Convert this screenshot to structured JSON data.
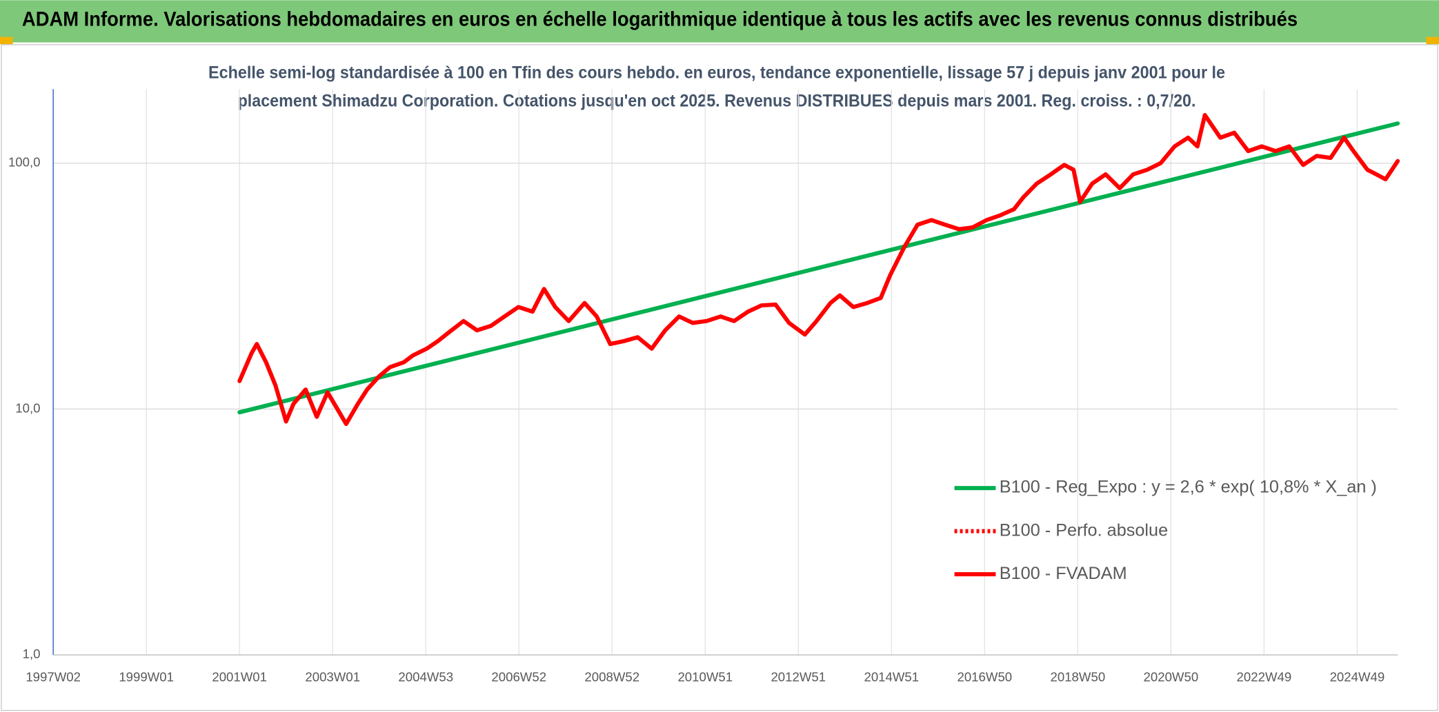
{
  "chart_data": {
    "type": "line",
    "title": "ADAM Informe. Valorisations hebdomadaires en euros en échelle logarithmique identique à tous les actifs avec les revenus connus distribués",
    "subtitle": [
      "Echelle semi-log standardisée à 100 en Tfin des cours hebdo. en euros, tendance exponentielle, lissage 57 j depuis janv 2001 pour le",
      "placement Shimadzu Corporation. Cotations jusqu'en oct 2025. Revenus DISTRIBUES depuis mars 2001. Reg. croiss. : 0,7/20."
    ],
    "log_y": true,
    "grid": true,
    "legend": "lower right",
    "xlim": [
      1997.0,
      2025.87
    ],
    "xticks": [
      {
        "value": 1997.0,
        "label": "1997W02"
      },
      {
        "value": 1999.0,
        "label": "1999W01"
      },
      {
        "value": 2001.0,
        "label": "2001W01"
      },
      {
        "value": 2003.0,
        "label": "2003W01"
      },
      {
        "value": 2005.0,
        "label": "2004W53"
      },
      {
        "value": 2007.0,
        "label": "2006W52"
      },
      {
        "value": 2009.0,
        "label": "2008W52"
      },
      {
        "value": 2011.0,
        "label": "2010W51"
      },
      {
        "value": 2013.0,
        "label": "2012W51"
      },
      {
        "value": 2015.0,
        "label": "2014W51"
      },
      {
        "value": 2017.0,
        "label": "2016W50"
      },
      {
        "value": 2019.0,
        "label": "2018W50"
      },
      {
        "value": 2021.0,
        "label": "2020W50"
      },
      {
        "value": 2023.0,
        "label": "2022W49"
      },
      {
        "value": 2025.0,
        "label": "2024W49"
      }
    ],
    "ylim": [
      1,
      200
    ],
    "yticks": [
      {
        "value": 1,
        "label": "1,0"
      },
      {
        "value": 10,
        "label": "10,0"
      },
      {
        "value": 100,
        "label": "100,0"
      }
    ],
    "series": [
      {
        "name": "B100 - Reg_Expo : y = 2,6 * exp( 10,8% *  X_an )",
        "color": "#00b050",
        "style": "solid",
        "x": [
          2001.0,
          2025.87
        ],
        "values": [
          9.7,
          145
        ]
      },
      {
        "name": "B100 - Perfo. absolue",
        "color": "#ff0000",
        "style": "dotted",
        "x": [],
        "values": []
      },
      {
        "name": "B100 - FVADAM",
        "color": "#ff0000",
        "style": "solid",
        "x": [
          2001.0,
          2001.26,
          2001.37,
          2001.57,
          2001.77,
          2002.0,
          2002.16,
          2002.42,
          2002.66,
          2002.89,
          2003.29,
          2003.54,
          2003.74,
          2004.0,
          2004.23,
          2004.53,
          2004.72,
          2005.02,
          2005.26,
          2005.51,
          2005.81,
          2006.1,
          2006.4,
          2006.69,
          2006.99,
          2007.29,
          2007.54,
          2007.78,
          2008.07,
          2008.41,
          2008.67,
          2008.96,
          2009.26,
          2009.55,
          2009.85,
          2010.14,
          2010.44,
          2010.73,
          2011.03,
          2011.33,
          2011.62,
          2011.92,
          2012.21,
          2012.51,
          2012.8,
          2013.14,
          2013.39,
          2013.69,
          2013.89,
          2014.18,
          2014.48,
          2014.77,
          2014.97,
          2015.27,
          2015.56,
          2015.86,
          2016.15,
          2016.45,
          2016.74,
          2017.04,
          2017.33,
          2017.63,
          2017.83,
          2018.12,
          2018.42,
          2018.71,
          2018.91,
          2019.05,
          2019.31,
          2019.6,
          2019.9,
          2020.19,
          2020.49,
          2020.78,
          2021.08,
          2021.37,
          2021.57,
          2021.73,
          2022.06,
          2022.36,
          2022.66,
          2022.95,
          2023.25,
          2023.54,
          2023.84,
          2024.13,
          2024.43,
          2024.72,
          2024.92,
          2025.22,
          2025.41,
          2025.61,
          2025.87
        ],
        "values": [
          13.0,
          16.9,
          18.4,
          15.5,
          12.5,
          8.9,
          10.5,
          12.0,
          9.3,
          11.7,
          8.7,
          10.5,
          12.0,
          13.6,
          14.8,
          15.5,
          16.5,
          17.6,
          18.9,
          20.6,
          22.8,
          20.9,
          21.8,
          23.8,
          26.0,
          24.9,
          30.8,
          26.0,
          22.8,
          27.0,
          23.8,
          18.4,
          18.9,
          19.6,
          17.6,
          20.9,
          23.8,
          22.4,
          22.8,
          23.8,
          22.8,
          24.9,
          26.4,
          26.6,
          22.4,
          20.1,
          22.8,
          27.0,
          29.0,
          26.0,
          27.0,
          28.3,
          35.0,
          45.4,
          56.2,
          58.7,
          56.2,
          53.9,
          54.8,
          58.7,
          61.3,
          65.0,
          72.6,
          82.6,
          90.1,
          98.4,
          94.0,
          69.6,
          82.6,
          90.1,
          79.1,
          90.1,
          94.0,
          100,
          117,
          127,
          117,
          157,
          127,
          133,
          112,
          117,
          112,
          117,
          98.4,
          107,
          105,
          127,
          112,
          94.0,
          90.1,
          86.0,
          102
        ]
      }
    ]
  }
}
